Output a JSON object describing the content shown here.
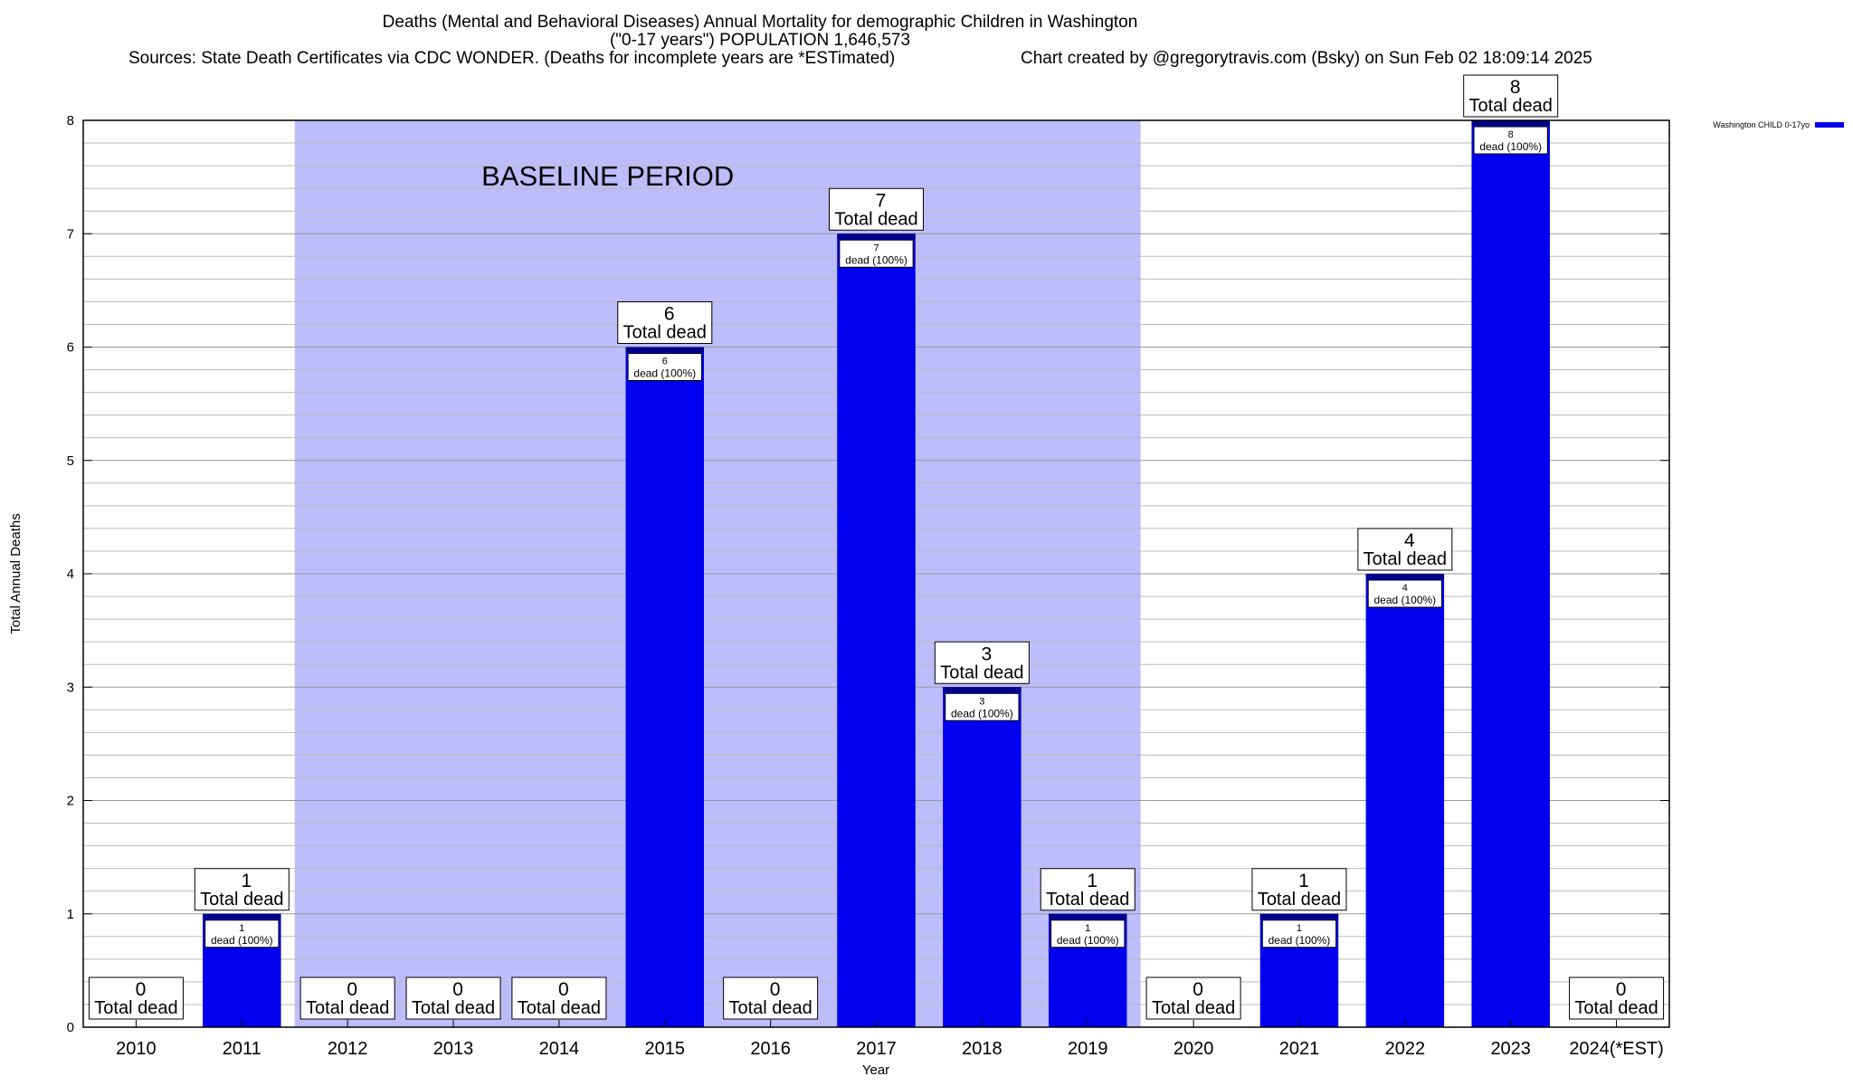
{
  "title": {
    "line1": "Deaths (Mental and Behavioral Diseases) Annual Mortality for demographic Children in Washington",
    "line2": "(\"0-17 years\") POPULATION 1,646,573",
    "sources": "Sources: State Death Certificates via CDC WONDER. (Deaths for incomplete years are *ESTimated)",
    "credit": "Chart created by @gregorytravis.com (Bsky) on Sun Feb 02 18:09:14 2025"
  },
  "colors": {
    "bar": "#0000ee",
    "bar_cap": "#00008b",
    "baseline_shade": "#bdbdfb",
    "grid": "#bbbbbb"
  },
  "chart_data": {
    "type": "bar",
    "xlabel": "Year",
    "ylabel": "Total Annual Deaths",
    "ylim": [
      0,
      8
    ],
    "yticks": [
      0,
      1,
      2,
      3,
      4,
      5,
      6,
      7,
      8
    ],
    "grid": true,
    "legend_position": "top-right",
    "categories": [
      "2010",
      "2011",
      "2012",
      "2013",
      "2014",
      "2015",
      "2016",
      "2017",
      "2018",
      "2019",
      "2020",
      "2021",
      "2022",
      "2023",
      "2024(*EST)"
    ],
    "series": [
      {
        "name": "Washington CHILD 0-17yo",
        "values": [
          0,
          1,
          0,
          0,
          0,
          6,
          0,
          7,
          3,
          1,
          0,
          1,
          4,
          8,
          0
        ]
      }
    ],
    "total_label": "Total dead",
    "inner_label": "dead (100%)",
    "baseline_region": {
      "label": "BASELINE PERIOD",
      "from": "2012",
      "to": "2019"
    }
  }
}
